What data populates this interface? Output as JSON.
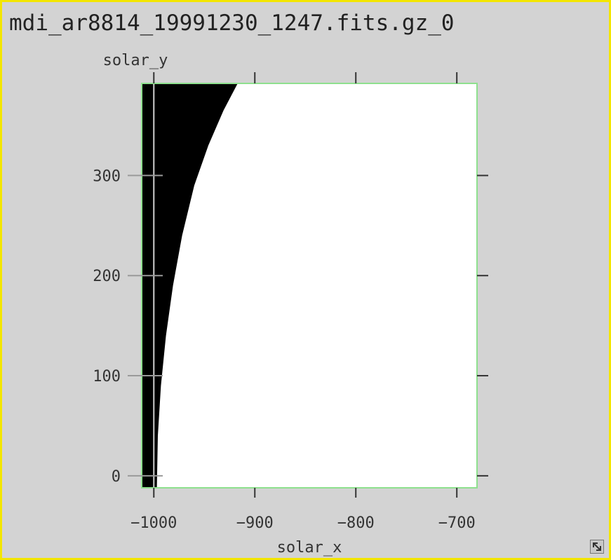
{
  "window": {
    "title": "mdi_ar8814_19991230_1247.fits.gz_0"
  },
  "colors": {
    "background": "#d3d3d3",
    "border": "#f3e600",
    "frame": "#8ee08e",
    "image_fill": "#000000",
    "image_empty": "#ffffff",
    "tick": "#333333"
  },
  "icons": {
    "resize": "resize-diagonal-arrow-icon"
  },
  "chart_data": {
    "type": "heatmap",
    "xlabel": "solar_x",
    "ylabel": "solar_y",
    "xlim": [
      -1012,
      -680
    ],
    "ylim": [
      -12,
      392
    ],
    "xticks": [
      -1000,
      -900,
      -800,
      -700
    ],
    "yticks": [
      0,
      100,
      200,
      300
    ],
    "grid": false,
    "limb_boundary": {
      "x": [
        -997,
        -996,
        -993,
        -988,
        -981,
        -972,
        -960,
        -946,
        -931,
        -917
      ],
      "y": [
        -12,
        40,
        90,
        140,
        190,
        240,
        290,
        330,
        365,
        392
      ]
    }
  }
}
